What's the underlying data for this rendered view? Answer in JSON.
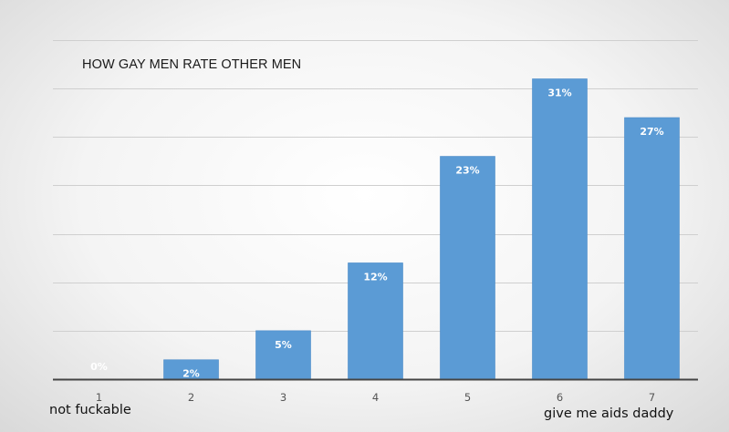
{
  "chart_data": {
    "type": "bar",
    "title": "HOW GAY MEN RATE OTHER MEN",
    "categories": [
      "1",
      "2",
      "3",
      "4",
      "5",
      "6",
      "7"
    ],
    "values": [
      0,
      2,
      5,
      12,
      23,
      31,
      27
    ],
    "data_labels": [
      "0%",
      "2%",
      "5%",
      "12%",
      "23%",
      "31%",
      "27%"
    ],
    "x_end_labels": {
      "low": "not fuckable",
      "high": "give me aids daddy"
    },
    "ylim": [
      0,
      35
    ],
    "grid": true,
    "bar_color": "#5b9bd5",
    "label_color": "#ffffff"
  }
}
